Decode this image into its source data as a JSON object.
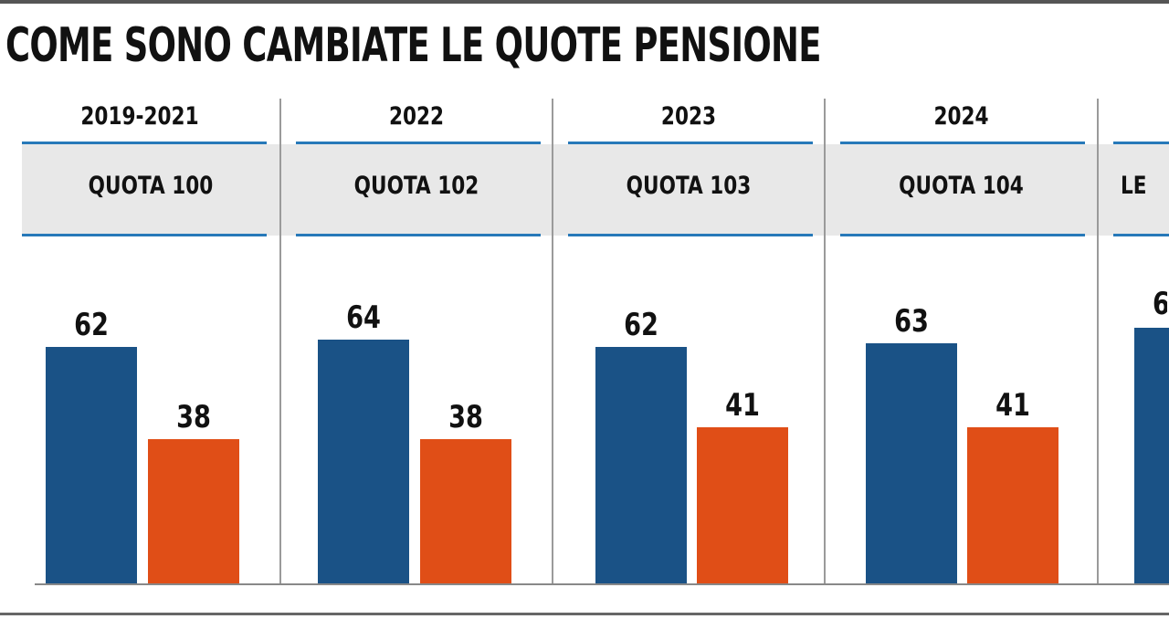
{
  "title": "COME SONO CAMBIATE LE QUOTE PENSIONE",
  "colors": {
    "age_bar": "#1a5286",
    "contrib_bar": "#e04e17",
    "accent_line": "#2779b9",
    "box_bg": "#e8e8e8"
  },
  "chart_data": {
    "type": "bar",
    "title": "COME SONO CAMBIATE LE QUOTE PENSIONE",
    "categories": [
      "2019-2021",
      "2022",
      "2023",
      "2024"
    ],
    "quota_labels": [
      "QUOTA 100",
      "QUOTA 102",
      "QUOTA 103",
      "QUOTA 104",
      "LE"
    ],
    "series": [
      {
        "values": [
          62,
          64,
          62,
          63
        ],
        "color": "#1a5286"
      },
      {
        "values": [
          38,
          38,
          41,
          41
        ],
        "color": "#e04e17"
      }
    ],
    "partial_visible_value": "6",
    "grid": false,
    "xlabel": "",
    "ylabel": ""
  }
}
